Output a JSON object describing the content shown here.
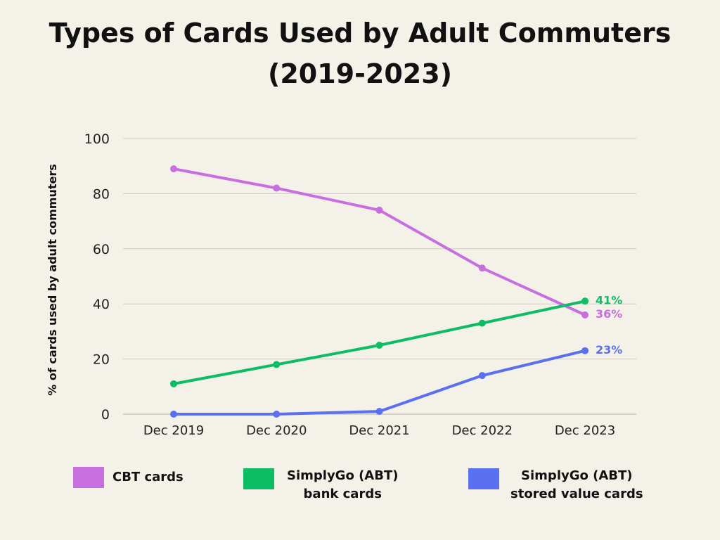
{
  "title_lines": [
    "Types of Cards Used by Adult Commuters",
    "(2019-2023)"
  ],
  "chart_data": {
    "type": "line",
    "title": "Types of Cards Used by Adult Commuters (2019-2023)",
    "xlabel": "",
    "ylabel": "% of cards used by adult commuters",
    "categories": [
      "Dec 2019",
      "Dec 2020",
      "Dec 2021",
      "Dec 2022",
      "Dec 2023"
    ],
    "ylim": [
      0,
      100
    ],
    "yticks": [
      0,
      20,
      40,
      60,
      80,
      100
    ],
    "grid": true,
    "series": [
      {
        "name": "CBT cards",
        "color": "#c86fe0",
        "values": [
          89,
          82,
          74,
          53,
          36
        ],
        "end_label": "36%"
      },
      {
        "name": "SimplyGo (ABT) bank cards",
        "color": "#0dbd63",
        "values": [
          11,
          18,
          25,
          33,
          41
        ],
        "end_label": "41%"
      },
      {
        "name": "SimplyGo (ABT) stored value cards",
        "color": "#5a70f0",
        "values": [
          0,
          0,
          1,
          14,
          23
        ],
        "end_label": "23%"
      }
    ]
  },
  "legend": [
    {
      "lines": [
        "CBT cards"
      ],
      "color": "#c86fe0"
    },
    {
      "lines": [
        "SimplyGo (ABT)",
        "bank cards"
      ],
      "color": "#0dbd63"
    },
    {
      "lines": [
        "SimplyGo (ABT)",
        "stored value cards"
      ],
      "color": "#5a70f0"
    }
  ]
}
